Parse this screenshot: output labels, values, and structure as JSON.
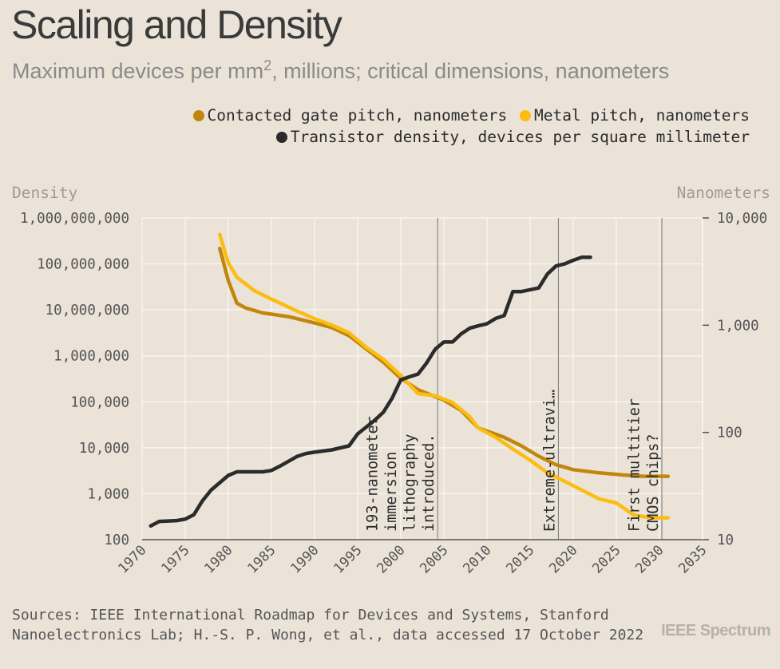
{
  "header": {
    "title": "Scaling and Density",
    "subtitle_main": "Maximum devices per mm",
    "subtitle_sup": "2",
    "subtitle_rest": ", millions; critical dimensions, nanometers"
  },
  "legend": [
    {
      "label": "Contacted gate pitch, nanometers",
      "color": "#c0870c"
    },
    {
      "label": "Metal pitch, nanometers",
      "color": "#fbbd13"
    },
    {
      "label": "Transistor density, devices per square millimeter",
      "color": "#2b2b2b"
    }
  ],
  "footer": {
    "source": "Sources: IEEE International Roadmap for Devices and Systems, Stanford Nanoelectronics Lab; H.-S. P. Wong, et al., data accessed 17 October 2022",
    "brand": "IEEE Spectrum"
  },
  "chart_data": {
    "type": "line",
    "x_range": [
      1970,
      2035
    ],
    "x_ticks": [
      1970,
      1975,
      1980,
      1985,
      1990,
      1995,
      2000,
      2005,
      2010,
      2015,
      2020,
      2025,
      2030,
      2035
    ],
    "left_axis": {
      "label": "Density",
      "scale": "log",
      "range": [
        100,
        1000000000
      ],
      "ticks": [
        100,
        1000,
        10000,
        100000,
        1000000,
        10000000,
        100000000,
        1000000000
      ],
      "tick_labels": [
        "100",
        "1,000",
        "10,000",
        "100,000",
        "1,000,000",
        "10,000,000",
        "100,000,000",
        "1,000,000,000"
      ]
    },
    "right_axis": {
      "label": "Nanometers",
      "scale": "log",
      "range": [
        10,
        10000
      ],
      "ticks": [
        10,
        100,
        1000,
        10000
      ],
      "tick_labels": [
        "10",
        "100",
        "1,000",
        "10,000"
      ]
    },
    "grid": true,
    "legend_position": "top-right",
    "series": [
      {
        "name": "Contacted gate pitch, nanometers",
        "axis": "right",
        "color": "#c0870c",
        "x": [
          1979,
          1980,
          1981,
          1982,
          1984,
          1987,
          1990,
          1992,
          1994,
          1996,
          1998,
          2000,
          2002,
          2005,
          2007,
          2009,
          2012,
          2014,
          2016,
          2018,
          2020,
          2023,
          2026,
          2028,
          2031
        ],
        "y": [
          5200,
          2600,
          1600,
          1450,
          1300,
          1200,
          1050,
          950,
          800,
          600,
          450,
          320,
          250,
          200,
          160,
          110,
          90,
          75,
          60,
          50,
          45,
          42,
          40,
          39,
          39
        ]
      },
      {
        "name": "Metal pitch, nanometers",
        "axis": "right",
        "color": "#fbbd13",
        "x": [
          1979,
          1980,
          1981,
          1983,
          1985,
          1988,
          1990,
          1992,
          1994,
          1996,
          1998,
          2000,
          2002,
          2004,
          2006,
          2008,
          2009,
          2011,
          2013,
          2015,
          2017,
          2019,
          2021,
          2023,
          2025,
          2027,
          2029,
          2031
        ],
        "y": [
          7000,
          3800,
          2800,
          2100,
          1750,
          1350,
          1150,
          1000,
          850,
          620,
          480,
          340,
          230,
          220,
          190,
          140,
          110,
          90,
          70,
          55,
          42,
          35,
          29,
          24,
          22,
          17,
          16,
          16
        ]
      },
      {
        "name": "Transistor density, devices per square millimeter",
        "axis": "left",
        "color": "#2b2b2b",
        "x": [
          1971,
          1972,
          1974,
          1975,
          1976,
          1977,
          1978,
          1980,
          1981,
          1982,
          1984,
          1985,
          1986,
          1988,
          1989,
          1990,
          1992,
          1994,
          1995,
          1997,
          1998,
          1999,
          2000,
          2001,
          2002,
          2003,
          2004,
          2005,
          2006,
          2007,
          2008,
          2009,
          2010,
          2011,
          2012,
          2013,
          2014,
          2016,
          2017,
          2018,
          2019,
          2020,
          2021,
          2022
        ],
        "y": [
          200,
          250,
          260,
          280,
          350,
          700,
          1200,
          2500,
          3000,
          3000,
          3000,
          3200,
          4000,
          6500,
          7500,
          8000,
          9000,
          11000,
          20000,
          40000,
          60000,
          120000,
          300000,
          350000,
          400000,
          700000,
          1400000,
          2000000,
          2000000,
          3000000,
          4000000,
          4500000,
          5000000,
          6500000,
          7500000,
          25000000,
          25000000,
          30000000,
          60000000,
          90000000,
          100000000,
          120000000,
          140000000,
          140000000
        ]
      }
    ],
    "annotations": [
      {
        "x": 2004,
        "text": "193-nanometer immersion lithography introduced.",
        "lines": [
          "193-nanometer",
          "immersion",
          "lithography",
          "introduced."
        ]
      },
      {
        "x": 2018,
        "text": "Extreme-ultravi…",
        "lines": [
          "Extreme-ultravi…"
        ]
      },
      {
        "x": 2030,
        "text": "First multitier CMOS chips?",
        "lines": [
          "First multitier",
          "CMOS chips?"
        ]
      }
    ]
  }
}
